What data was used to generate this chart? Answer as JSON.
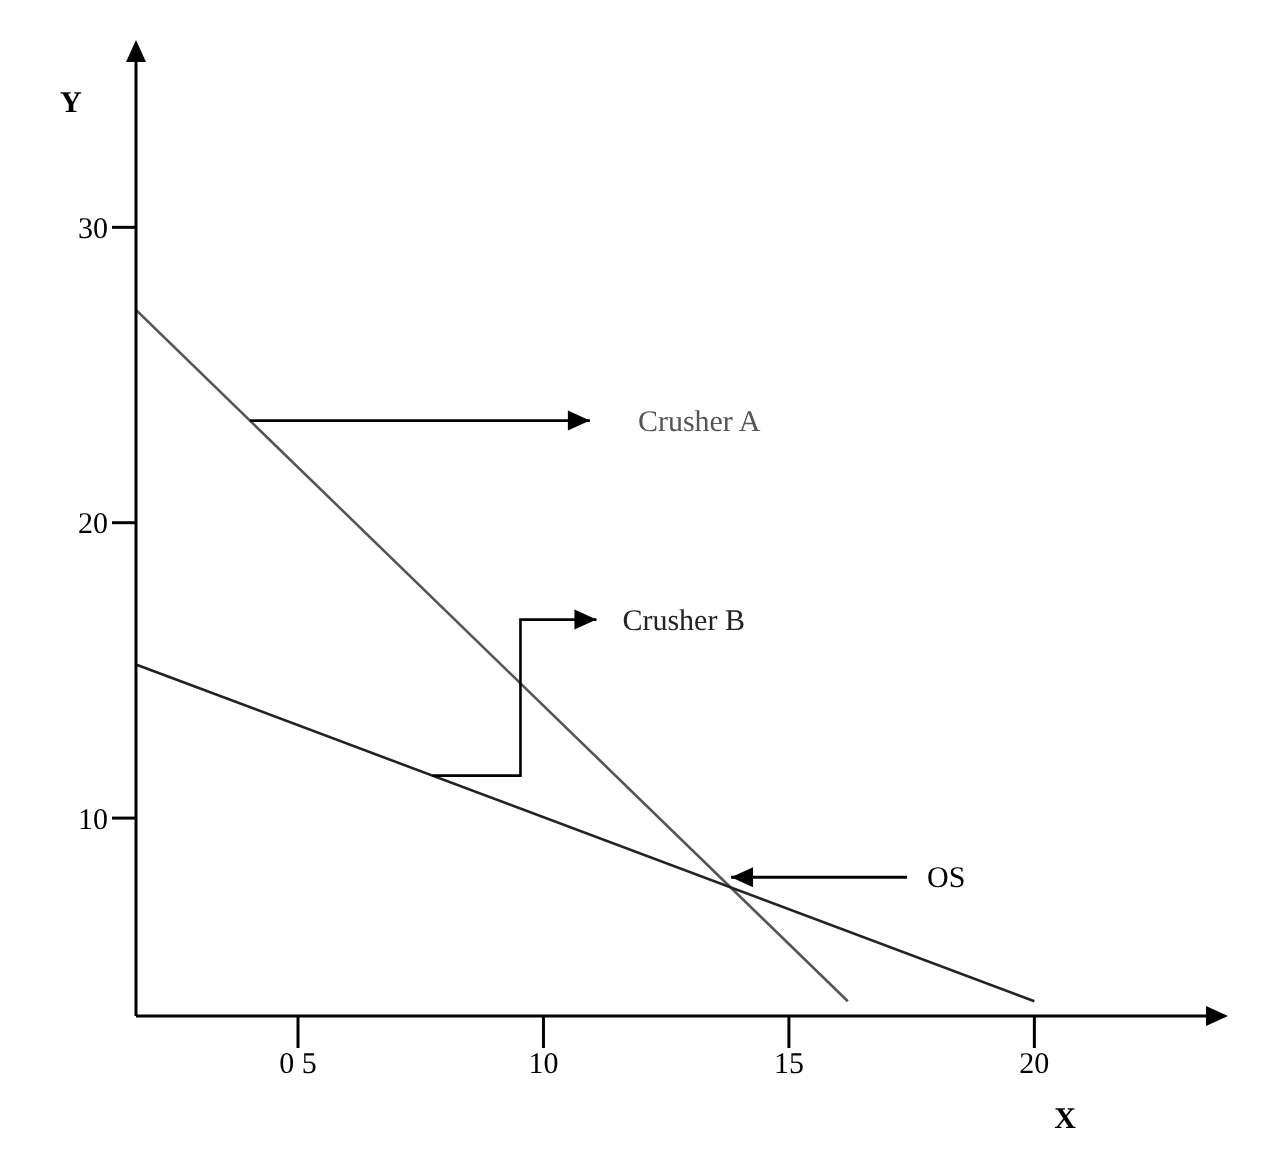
{
  "chart_data": {
    "type": "line",
    "xlabel": "X",
    "ylabel": "Y",
    "xlim": [
      1.7,
      23.7
    ],
    "ylim": [
      3.3,
      35.8
    ],
    "xticks": [
      {
        "value": 5,
        "label": "0 5"
      },
      10,
      15,
      20
    ],
    "yticks": [
      10,
      20,
      30
    ],
    "series": [
      {
        "name": "Crusher A",
        "color": "#555555",
        "x": [
          1.7,
          16.2
        ],
        "values": [
          27.2,
          3.8
        ]
      },
      {
        "name": "Crusher B",
        "color": "#222222",
        "x": [
          1.7,
          20
        ],
        "values": [
          15.2,
          3.8
        ]
      }
    ],
    "annotations": [
      {
        "text": "OS",
        "x": 13.7,
        "y": 8.0
      }
    ],
    "grid": false,
    "legend": false,
    "marker": "none",
    "line_style": "solid"
  }
}
